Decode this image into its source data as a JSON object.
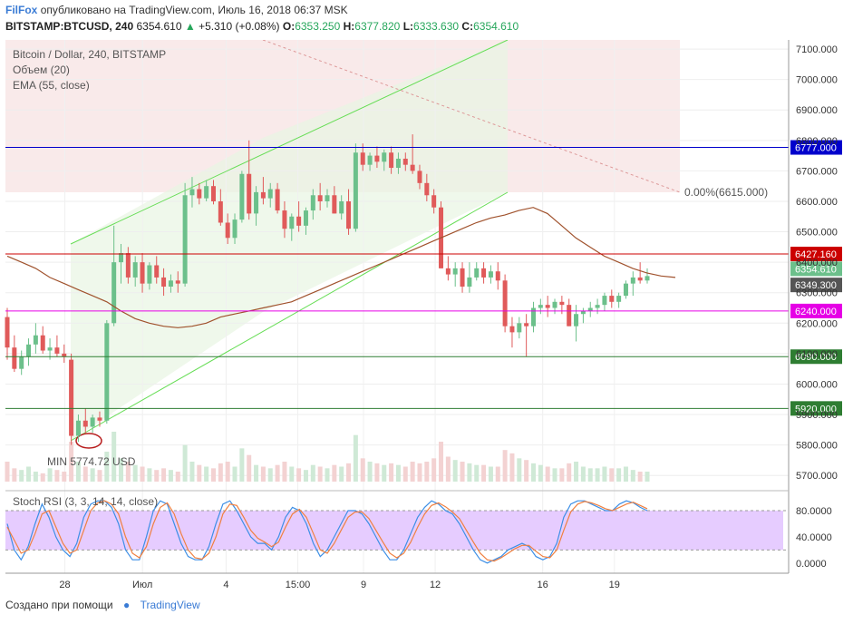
{
  "header": {
    "brand": "FilFox",
    "published": "опубликовано на TradingView.com, Июль 16, 2018 06:37 MSK",
    "symbol": "BITSTAMP:BTCUSD, 240",
    "last": "6354.610",
    "change": "+5.310 (+0.08%)",
    "o_label": "O:",
    "o": "6353.250",
    "h_label": "H:",
    "h": "6377.820",
    "l_label": "L:",
    "l": "6333.630",
    "c_label": "C:",
    "c": "6354.610"
  },
  "footer": {
    "made_with": "Создано при помощи",
    "tradingview": "TradingView"
  },
  "chart_data": {
    "type": "candlestick",
    "title": "Bitcoin / Dollar, 240, BITSTAMP",
    "indicators": [
      "Объем (20)",
      "EMA (55, close)"
    ],
    "price_ticks": [
      "7100.000",
      "7000.000",
      "6900.000",
      "6800.000",
      "6700.000",
      "6600.000",
      "6500.000",
      "6400.000",
      "6300.000",
      "6200.000",
      "6100.000",
      "6000.000",
      "5900.000",
      "5800.000",
      "5700.000"
    ],
    "x_ticks": [
      "28",
      "Июл",
      "4",
      "15:00",
      "9",
      "12",
      "16",
      "19"
    ],
    "ylim": [
      5650,
      7130
    ],
    "horizontal_levels": [
      {
        "label": "6777.000",
        "value": 6777,
        "color": "#0000cc"
      },
      {
        "label": "6427.160",
        "value": 6427.16,
        "color": "#cc0000"
      },
      {
        "label": "6240.000",
        "value": 6240,
        "color": "#e600e6"
      },
      {
        "label": "6090.000",
        "value": 6090,
        "color": "#2e7d32"
      },
      {
        "label": "5920.000",
        "value": 5920,
        "color": "#2e7d32"
      }
    ],
    "price_tags": [
      {
        "label": "6354.610",
        "value": 6354.61,
        "color": "#6cc08b"
      },
      {
        "label": "6349.300",
        "value": 6349.3,
        "color": "#555555"
      }
    ],
    "fib_label": "0.00%(6615.000)",
    "min_label": "MIN 5774.72 USD",
    "candles": [
      [
        6220,
        6250,
        6080,
        6120
      ],
      [
        6120,
        6160,
        6040,
        6050
      ],
      [
        6050,
        6110,
        6030,
        6090
      ],
      [
        6090,
        6150,
        6060,
        6130
      ],
      [
        6130,
        6200,
        6100,
        6160
      ],
      [
        6160,
        6190,
        6100,
        6110
      ],
      [
        6110,
        6150,
        6080,
        6120
      ],
      [
        6120,
        6160,
        6090,
        6100
      ],
      [
        6100,
        6130,
        6070,
        6090
      ],
      [
        6080,
        6100,
        5800,
        5830
      ],
      [
        5830,
        5900,
        5810,
        5880
      ],
      [
        5880,
        5920,
        5840,
        5860
      ],
      [
        5860,
        5900,
        5840,
        5890
      ],
      [
        5890,
        5910,
        5860,
        5880
      ],
      [
        5880,
        6210,
        5870,
        6200
      ],
      [
        6200,
        6520,
        6190,
        6400
      ],
      [
        6400,
        6460,
        6330,
        6430
      ],
      [
        6430,
        6450,
        6330,
        6350
      ],
      [
        6350,
        6420,
        6320,
        6400
      ],
      [
        6400,
        6430,
        6300,
        6330
      ],
      [
        6330,
        6400,
        6310,
        6390
      ],
      [
        6390,
        6420,
        6330,
        6350
      ],
      [
        6350,
        6380,
        6290,
        6320
      ],
      [
        6320,
        6360,
        6300,
        6340
      ],
      [
        6340,
        6370,
        6300,
        6330
      ],
      [
        6330,
        6660,
        6320,
        6620
      ],
      [
        6620,
        6680,
        6580,
        6640
      ],
      [
        6640,
        6660,
        6590,
        6610
      ],
      [
        6610,
        6670,
        6600,
        6650
      ],
      [
        6650,
        6670,
        6590,
        6600
      ],
      [
        6600,
        6640,
        6520,
        6530
      ],
      [
        6530,
        6560,
        6460,
        6480
      ],
      [
        6480,
        6560,
        6460,
        6540
      ],
      [
        6540,
        6700,
        6530,
        6690
      ],
      [
        6690,
        6800,
        6540,
        6560
      ],
      [
        6560,
        6650,
        6520,
        6630
      ],
      [
        6630,
        6680,
        6590,
        6610
      ],
      [
        6610,
        6660,
        6580,
        6640
      ],
      [
        6640,
        6660,
        6560,
        6570
      ],
      [
        6570,
        6600,
        6480,
        6510
      ],
      [
        6510,
        6560,
        6470,
        6550
      ],
      [
        6550,
        6600,
        6500,
        6520
      ],
      [
        6520,
        6580,
        6490,
        6570
      ],
      [
        6570,
        6640,
        6540,
        6620
      ],
      [
        6620,
        6660,
        6570,
        6600
      ],
      [
        6600,
        6640,
        6580,
        6620
      ],
      [
        6620,
        6650,
        6560,
        6560
      ],
      [
        6560,
        6620,
        6540,
        6600
      ],
      [
        6600,
        6640,
        6490,
        6510
      ],
      [
        6510,
        6790,
        6500,
        6760
      ],
      [
        6760,
        6790,
        6700,
        6720
      ],
      [
        6720,
        6760,
        6700,
        6750
      ],
      [
        6750,
        6780,
        6710,
        6730
      ],
      [
        6730,
        6770,
        6700,
        6760
      ],
      [
        6760,
        6780,
        6690,
        6710
      ],
      [
        6710,
        6760,
        6690,
        6740
      ],
      [
        6740,
        6760,
        6700,
        6720
      ],
      [
        6720,
        6820,
        6690,
        6700
      ],
      [
        6700,
        6720,
        6640,
        6660
      ],
      [
        6660,
        6690,
        6600,
        6620
      ],
      [
        6620,
        6640,
        6560,
        6580
      ],
      [
        6580,
        6600,
        6380,
        6380
      ],
      [
        6380,
        6420,
        6340,
        6360
      ],
      [
        6360,
        6400,
        6320,
        6380
      ],
      [
        6380,
        6400,
        6300,
        6320
      ],
      [
        6320,
        6400,
        6300,
        6350
      ],
      [
        6350,
        6400,
        6340,
        6380
      ],
      [
        6380,
        6400,
        6330,
        6350
      ],
      [
        6350,
        6390,
        6330,
        6370
      ],
      [
        6370,
        6400,
        6310,
        6340
      ],
      [
        6340,
        6360,
        6170,
        6190
      ],
      [
        6190,
        6220,
        6120,
        6170
      ],
      [
        6170,
        6220,
        6150,
        6200
      ],
      [
        6200,
        6230,
        6090,
        6190
      ],
      [
        6190,
        6270,
        6170,
        6250
      ],
      [
        6250,
        6280,
        6230,
        6260
      ],
      [
        6260,
        6290,
        6220,
        6250
      ],
      [
        6250,
        6280,
        6230,
        6270
      ],
      [
        6270,
        6290,
        6230,
        6260
      ],
      [
        6260,
        6280,
        6190,
        6190
      ],
      [
        6190,
        6260,
        6140,
        6230
      ],
      [
        6230,
        6250,
        6200,
        6240
      ],
      [
        6240,
        6270,
        6220,
        6250
      ],
      [
        6250,
        6280,
        6230,
        6260
      ],
      [
        6260,
        6300,
        6240,
        6290
      ],
      [
        6290,
        6310,
        6250,
        6270
      ],
      [
        6270,
        6300,
        6250,
        6290
      ],
      [
        6290,
        6340,
        6280,
        6330
      ],
      [
        6330,
        6370,
        6290,
        6350
      ],
      [
        6350,
        6400,
        6330,
        6340
      ],
      [
        6340,
        6380,
        6330,
        6354.61
      ]
    ],
    "ema_55": [
      6420,
      6400,
      6380,
      6350,
      6330,
      6310,
      6290,
      6270,
      6240,
      6215,
      6200,
      6190,
      6185,
      6190,
      6200,
      6220,
      6230,
      6240,
      6250,
      6260,
      6270,
      6290,
      6310,
      6330,
      6350,
      6370,
      6390,
      6410,
      6430,
      6450,
      6470,
      6490,
      6510,
      6530,
      6545,
      6555,
      6570,
      6580,
      6560,
      6520,
      6480,
      6450,
      6420,
      6400,
      6380,
      6365,
      6355,
      6350
    ],
    "volume": [
      60,
      40,
      35,
      45,
      30,
      25,
      40,
      35,
      30,
      120,
      60,
      45,
      40,
      35,
      90,
      150,
      70,
      60,
      50,
      45,
      40,
      35,
      40,
      35,
      30,
      110,
      60,
      50,
      45,
      40,
      55,
      60,
      45,
      100,
      80,
      50,
      45,
      40,
      50,
      60,
      45,
      40,
      35,
      50,
      45,
      40,
      50,
      45,
      55,
      140,
      70,
      60,
      55,
      50,
      55,
      50,
      45,
      60,
      55,
      60,
      70,
      120,
      75,
      65,
      60,
      55,
      50,
      50,
      45,
      45,
      95,
      85,
      70,
      65,
      55,
      50,
      45,
      40,
      40,
      55,
      60,
      45,
      40,
      40,
      45,
      40,
      40,
      45,
      35,
      30,
      30
    ],
    "stoch_rsi": {
      "label": "Stoch RSI (3, 3, 14, 14, close)",
      "ticks": [
        "80.0000",
        "40.0000",
        "0.0000"
      ],
      "ylim": [
        -10,
        105
      ],
      "band": [
        20,
        80
      ],
      "k": [
        60,
        20,
        5,
        25,
        60,
        90,
        70,
        40,
        20,
        10,
        30,
        70,
        90,
        95,
        95,
        85,
        60,
        20,
        5,
        5,
        40,
        80,
        95,
        90,
        60,
        30,
        10,
        5,
        5,
        25,
        60,
        90,
        95,
        80,
        60,
        40,
        30,
        30,
        20,
        40,
        70,
        85,
        80,
        60,
        30,
        10,
        20,
        40,
        60,
        80,
        80,
        75,
        60,
        40,
        20,
        5,
        5,
        20,
        45,
        70,
        85,
        95,
        90,
        80,
        75,
        60,
        40,
        20,
        5,
        0,
        5,
        10,
        20,
        25,
        30,
        25,
        10,
        5,
        10,
        30,
        70,
        90,
        95,
        95,
        90,
        85,
        80,
        80,
        90,
        95,
        92,
        85,
        80
      ],
      "d": [
        55,
        35,
        15,
        20,
        45,
        75,
        80,
        55,
        30,
        15,
        20,
        50,
        80,
        92,
        95,
        90,
        75,
        40,
        15,
        8,
        25,
        60,
        85,
        92,
        75,
        45,
        20,
        8,
        6,
        15,
        40,
        75,
        90,
        88,
        70,
        50,
        38,
        32,
        25,
        32,
        55,
        75,
        82,
        70,
        45,
        20,
        15,
        30,
        50,
        70,
        78,
        78,
        68,
        50,
        32,
        15,
        8,
        15,
        32,
        55,
        75,
        88,
        92,
        86,
        78,
        68,
        50,
        32,
        15,
        5,
        3,
        8,
        15,
        22,
        27,
        27,
        18,
        10,
        8,
        20,
        50,
        78,
        90,
        94,
        92,
        88,
        83,
        80,
        85,
        90,
        93,
        88,
        83
      ]
    }
  }
}
